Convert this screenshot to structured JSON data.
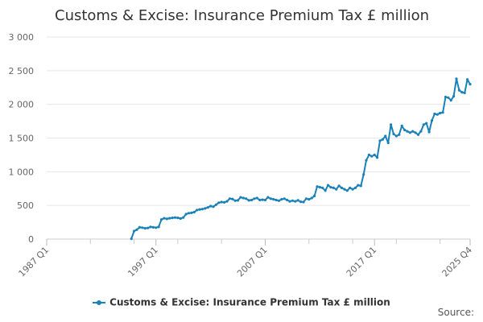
{
  "chart_data": {
    "type": "line",
    "title": "Customs & Excise: Insurance Premium Tax £ million",
    "ylabel": "",
    "xlabel": "",
    "ylim": [
      0,
      3000
    ],
    "y_ticks": [
      0,
      500,
      1000,
      1500,
      2000,
      2500,
      3000
    ],
    "y_tick_labels": [
      "0",
      "500",
      "1 000",
      "1 500",
      "2 000",
      "2 500",
      "3 000"
    ],
    "x_tick_labels": [
      "1987 Q1",
      "1997 Q1",
      "2007 Q1",
      "2017 Q1",
      "2025 Q4"
    ],
    "x_tick_quarters": [
      0,
      40,
      80,
      120,
      155
    ],
    "x_range_quarters": [
      0,
      155
    ],
    "grid": "horizontal",
    "legend_position": "bottom",
    "series": [
      {
        "name": "Customs & Excise: Insurance Premium Tax £ million",
        "color": "#1a81b9",
        "start": "1994 Q4",
        "values": [
          5,
          120,
          140,
          175,
          170,
          160,
          165,
          180,
          175,
          170,
          180,
          290,
          310,
          300,
          310,
          315,
          320,
          315,
          305,
          320,
          370,
          385,
          390,
          400,
          430,
          440,
          445,
          455,
          470,
          490,
          480,
          510,
          540,
          550,
          545,
          560,
          600,
          595,
          570,
          575,
          620,
          610,
          600,
          575,
          580,
          600,
          610,
          580,
          585,
          580,
          620,
          600,
          590,
          580,
          570,
          590,
          600,
          580,
          560,
          570,
          560,
          575,
          555,
          550,
          600,
          590,
          610,
          640,
          780,
          770,
          760,
          720,
          800,
          770,
          760,
          740,
          790,
          760,
          740,
          720,
          760,
          740,
          760,
          800,
          790,
          960,
          1170,
          1250,
          1230,
          1250,
          1210,
          1460,
          1480,
          1530,
          1430,
          1700,
          1560,
          1530,
          1550,
          1680,
          1620,
          1600,
          1580,
          1600,
          1580,
          1550,
          1600,
          1700,
          1720,
          1590,
          1760,
          1860,
          1850,
          1870,
          1880,
          2110,
          2100,
          2060,
          2120,
          2380,
          2210,
          2180,
          2170,
          2370,
          2300
        ]
      }
    ]
  },
  "legend": {
    "label": "Customs & Excise: Insurance Premium Tax £ million"
  },
  "source": {
    "label": "Source:"
  }
}
